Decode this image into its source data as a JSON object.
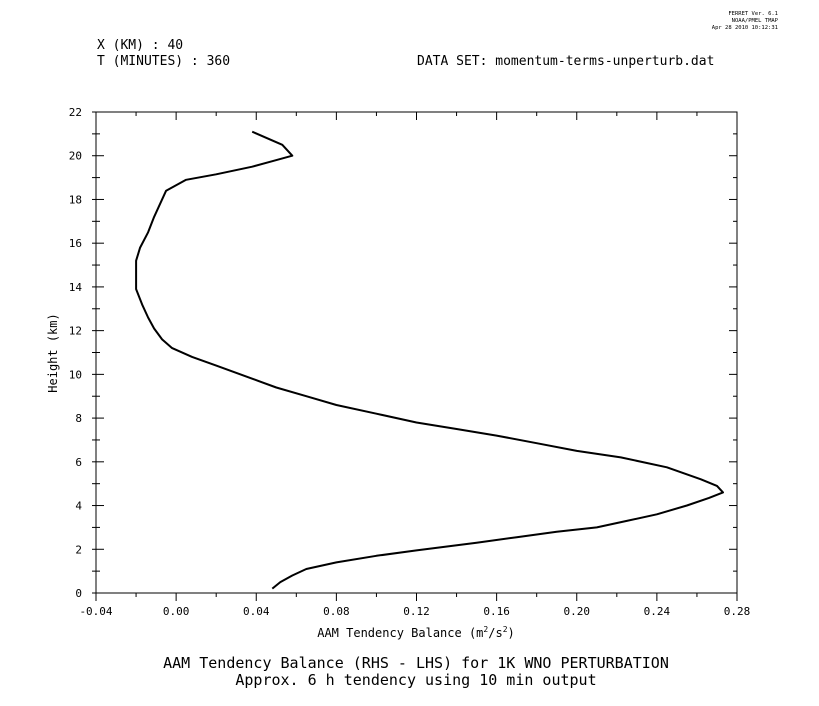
{
  "header": {
    "x_line": "X (KM) : 40",
    "t_line": "T (MINUTES) : 360",
    "dataset": "DATA SET: momentum-terms-unperturb.dat",
    "stamp": [
      "FERRET Ver. 6.1",
      "NOAA/PMEL TMAP",
      "Apr 28 2010 10:12:31"
    ]
  },
  "titles": {
    "line1": "AAM Tendency Balance (RHS - LHS) for 1K WNO PERTURBATION",
    "line2": "Approx. 6 h tendency using 10 min output"
  },
  "chart_data": {
    "type": "line",
    "xlabel": "AAM Tendency Balance (m",
    "xlabel_sup1": "2",
    "xlabel_mid": "/s",
    "xlabel_sup2": "2",
    "xlabel_end": ")",
    "ylabel": "Height (km)",
    "xlim": [
      -0.04,
      0.28
    ],
    "ylim": [
      0,
      22
    ],
    "x_ticks": [
      "-0.04",
      "0.00",
      "0.04",
      "0.08",
      "0.12",
      "0.16",
      "0.20",
      "0.24",
      "0.28"
    ],
    "x_tick_values": [
      -0.04,
      0.0,
      0.04,
      0.08,
      0.12,
      0.16,
      0.2,
      0.24,
      0.28
    ],
    "y_ticks": [
      "0",
      "2",
      "4",
      "6",
      "8",
      "10",
      "12",
      "14",
      "16",
      "18",
      "20",
      "22"
    ],
    "y_tick_values": [
      0,
      2,
      4,
      6,
      8,
      10,
      12,
      14,
      16,
      18,
      20,
      22
    ],
    "grid": false,
    "series": [
      {
        "color": "#000000",
        "points": [
          [
            0.048,
            0.2
          ],
          [
            0.052,
            0.5
          ],
          [
            0.058,
            0.8
          ],
          [
            0.065,
            1.1
          ],
          [
            0.08,
            1.4
          ],
          [
            0.1,
            1.7
          ],
          [
            0.12,
            1.95
          ],
          [
            0.15,
            2.3
          ],
          [
            0.17,
            2.55
          ],
          [
            0.19,
            2.8
          ],
          [
            0.21,
            3.0
          ],
          [
            0.225,
            3.3
          ],
          [
            0.24,
            3.6
          ],
          [
            0.255,
            4.0
          ],
          [
            0.266,
            4.35
          ],
          [
            0.273,
            4.6
          ],
          [
            0.27,
            4.9
          ],
          [
            0.262,
            5.2
          ],
          [
            0.245,
            5.75
          ],
          [
            0.222,
            6.2
          ],
          [
            0.2,
            6.5
          ],
          [
            0.18,
            6.85
          ],
          [
            0.16,
            7.2
          ],
          [
            0.14,
            7.5
          ],
          [
            0.12,
            7.8
          ],
          [
            0.1,
            8.2
          ],
          [
            0.08,
            8.6
          ],
          [
            0.065,
            9.0
          ],
          [
            0.05,
            9.4
          ],
          [
            0.038,
            9.8
          ],
          [
            0.02,
            10.4
          ],
          [
            0.008,
            10.8
          ],
          [
            -0.002,
            11.2
          ],
          [
            -0.007,
            11.6
          ],
          [
            -0.011,
            12.1
          ],
          [
            -0.014,
            12.6
          ],
          [
            -0.017,
            13.2
          ],
          [
            -0.02,
            13.9
          ],
          [
            -0.02,
            14.5
          ],
          [
            -0.02,
            15.2
          ],
          [
            -0.018,
            15.8
          ],
          [
            -0.014,
            16.5
          ],
          [
            -0.011,
            17.2
          ],
          [
            -0.008,
            17.8
          ],
          [
            -0.005,
            18.4
          ],
          [
            0.005,
            18.9
          ],
          [
            0.02,
            19.15
          ],
          [
            0.038,
            19.5
          ],
          [
            0.048,
            19.75
          ],
          [
            0.058,
            20.0
          ],
          [
            0.053,
            20.5
          ],
          [
            0.038,
            21.1
          ]
        ]
      }
    ]
  }
}
